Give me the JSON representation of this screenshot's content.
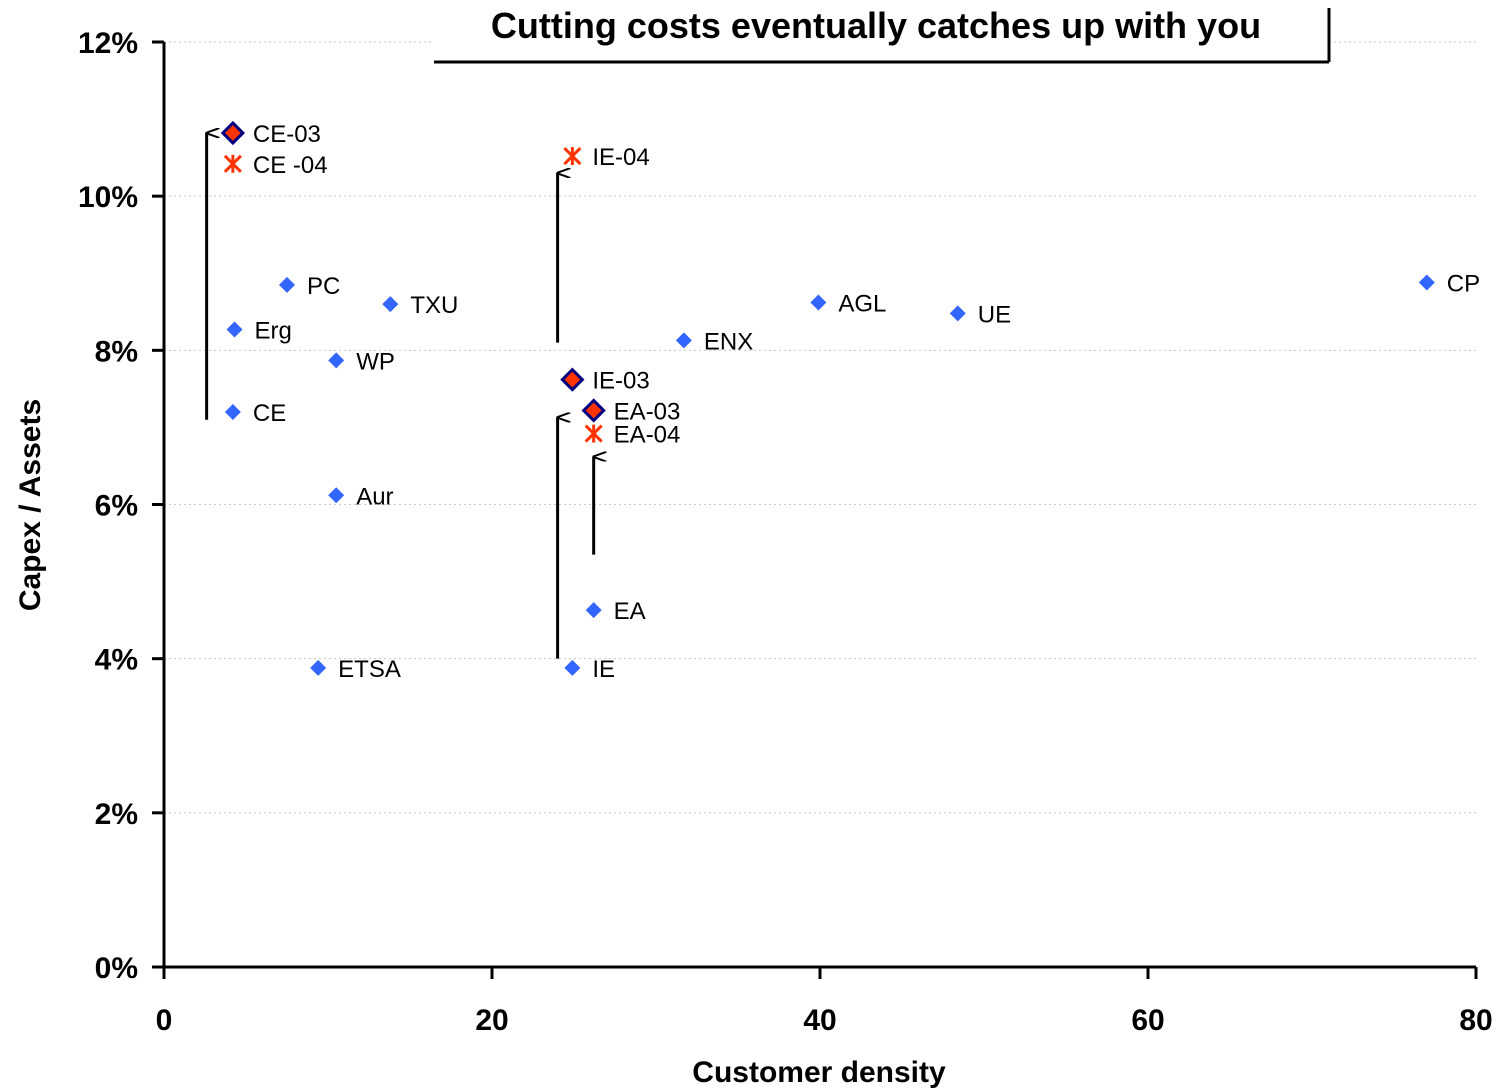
{
  "chart_data": {
    "type": "scatter",
    "title": "Cutting costs eventually catches up with you",
    "xlabel": "Customer density",
    "ylabel": "Capex / Assets",
    "xlim": [
      0,
      80
    ],
    "ylim": [
      0,
      12
    ],
    "x_ticks": [
      0,
      20,
      40,
      60,
      80
    ],
    "x_tick_labels": [
      "0",
      "20",
      "40",
      "60",
      "80"
    ],
    "y_ticks": [
      0,
      2,
      4,
      6,
      8,
      10,
      12
    ],
    "y_tick_labels": [
      "0%",
      "2%",
      "4%",
      "6%",
      "8%",
      "10%",
      "12%"
    ],
    "grid": "horizontal dotted",
    "colors": {
      "base": "#3366ff",
      "highlight_fill": "#ff3300",
      "highlight_border": "#000080",
      "star": "#ff3300",
      "arrow": "#000000"
    },
    "series": [
      {
        "marker": "diamond",
        "points": [
          {
            "label": "CE",
            "x": 4.2,
            "y": 7.2
          },
          {
            "label": "Erg",
            "x": 4.3,
            "y": 8.27
          },
          {
            "label": "PC",
            "x": 7.5,
            "y": 8.85
          },
          {
            "label": "WP",
            "x": 10.5,
            "y": 7.87
          },
          {
            "label": "TXU",
            "x": 13.8,
            "y": 8.6
          },
          {
            "label": "Aur",
            "x": 10.5,
            "y": 6.12
          },
          {
            "label": "ETSA",
            "x": 9.4,
            "y": 3.88
          },
          {
            "label": "IE",
            "x": 24.9,
            "y": 3.88
          },
          {
            "label": "EA",
            "x": 26.2,
            "y": 4.63
          },
          {
            "label": "ENX",
            "x": 31.7,
            "y": 8.13
          },
          {
            "label": "AGL",
            "x": 39.9,
            "y": 8.62
          },
          {
            "label": "UE",
            "x": 48.4,
            "y": 8.48
          },
          {
            "label": "CP",
            "x": 77.0,
            "y": 8.88
          }
        ]
      },
      {
        "marker": "diamond-highlight",
        "points": [
          {
            "label": "CE-03",
            "x": 4.2,
            "y": 10.82
          },
          {
            "label": "IE-03",
            "x": 24.9,
            "y": 7.62
          },
          {
            "label": "EA-03",
            "x": 26.2,
            "y": 7.22
          }
        ]
      },
      {
        "marker": "star",
        "points": [
          {
            "label": "CE -04",
            "x": 4.2,
            "y": 10.42
          },
          {
            "label": "IE-04",
            "x": 24.9,
            "y": 10.52
          },
          {
            "label": "EA-04",
            "x": 26.2,
            "y": 6.92
          }
        ]
      }
    ],
    "arrows": [
      {
        "x": 2.6,
        "y_from": 7.1,
        "y_to": 10.82
      },
      {
        "x": 24.0,
        "y_from": 8.1,
        "y_to": 10.3
      },
      {
        "x": 24.0,
        "y_from": 4.0,
        "y_to": 7.13
      },
      {
        "x": 26.2,
        "y_from": 5.35,
        "y_to": 6.62
      }
    ]
  }
}
